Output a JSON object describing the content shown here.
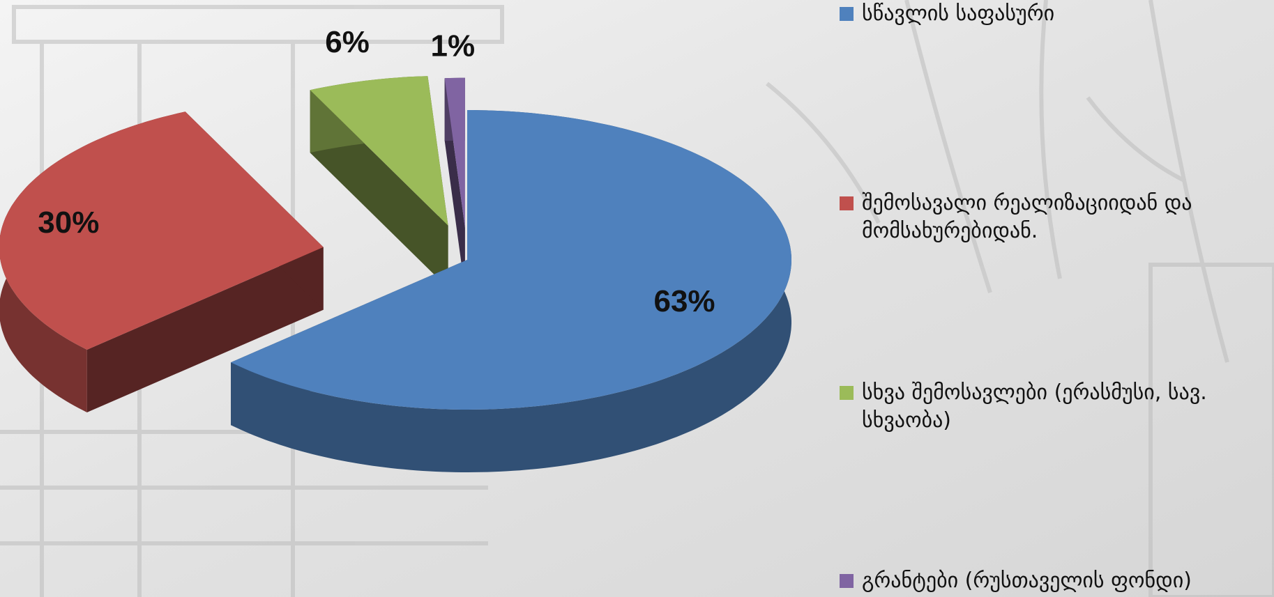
{
  "chart_data": {
    "type": "pie",
    "legend": "right",
    "categories": [
      "სწავლის საფასური",
      "შემოსავალი რეალიზაციიდან და მომსახურებიდან.",
      "სხვა შემოსავლები (ერასმუსი, სავ. სხვაობა)",
      "გრანტები (რუსთაველის ფონდი)"
    ],
    "values": [
      63,
      30,
      6,
      1
    ],
    "value_labels": [
      "63%",
      "30%",
      "6%",
      "1%"
    ],
    "colors": [
      "#4f81bd",
      "#c0504d",
      "#9bbb59",
      "#8064a2"
    ]
  }
}
